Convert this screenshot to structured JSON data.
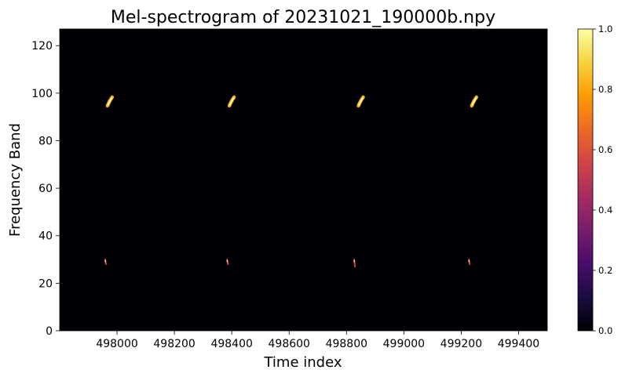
{
  "chart_data": {
    "type": "heatmap",
    "title": "Mel-spectrogram of 20231021_190000b.npy",
    "xlabel": "Time index",
    "ylabel": "Frequency Band",
    "xlim": [
      497800,
      499500
    ],
    "ylim": [
      0,
      127
    ],
    "x_ticks": [
      498000,
      498200,
      498400,
      498600,
      498800,
      499000,
      499200,
      499400
    ],
    "y_ticks": [
      0,
      20,
      40,
      60,
      80,
      100,
      120
    ],
    "background_value": 0.0,
    "colormap": "inferno",
    "colorbar": {
      "range": [
        0.0,
        1.0
      ],
      "ticks": [
        "0.0",
        "0.2",
        "0.4",
        "0.6",
        "0.8",
        "1.0"
      ],
      "stops": [
        "#000004",
        "#1b0c41",
        "#4a0c6b",
        "#781c6d",
        "#a52c60",
        "#cf4446",
        "#ed6925",
        "#fb9b06",
        "#f7d13d",
        "#fcffa4"
      ]
    },
    "events": [
      {
        "band": "high",
        "x": 497975,
        "y_low": 95,
        "y_high": 98,
        "intensity": 1.0
      },
      {
        "band": "high",
        "x": 498400,
        "y_low": 95,
        "y_high": 98,
        "intensity": 1.0
      },
      {
        "band": "high",
        "x": 498850,
        "y_low": 95,
        "y_high": 98,
        "intensity": 1.0
      },
      {
        "band": "high",
        "x": 499245,
        "y_low": 95,
        "y_high": 98,
        "intensity": 1.0
      },
      {
        "band": "low",
        "x": 497960,
        "y_low": 28,
        "y_high": 30,
        "intensity": 0.6
      },
      {
        "band": "low",
        "x": 498385,
        "y_low": 28,
        "y_high": 30,
        "intensity": 0.6
      },
      {
        "band": "low",
        "x": 498828,
        "y_low": 27,
        "y_high": 30,
        "intensity": 0.6
      },
      {
        "band": "low",
        "x": 499228,
        "y_low": 28,
        "y_high": 30,
        "intensity": 0.6
      }
    ]
  }
}
